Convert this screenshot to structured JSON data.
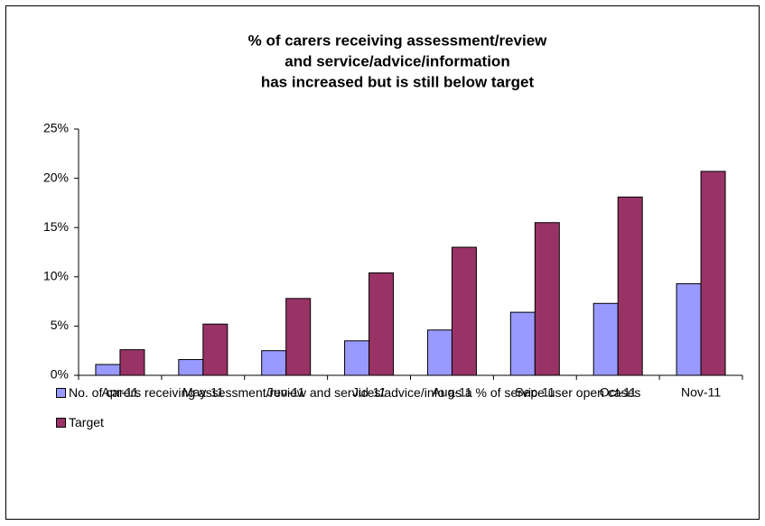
{
  "chart_data": {
    "type": "bar",
    "title": [
      "% of carers receiving assessment/review",
      "and service/advice/information",
      "has increased but is still below target"
    ],
    "categories": [
      "Apr-11",
      "May-11",
      "Jun-11",
      "Jul-11",
      "Aug-11",
      "Sep-11",
      "Oct-11",
      "Nov-11"
    ],
    "series": [
      {
        "name": "No. of carers receiving assessment/review and services/advice/info as a % of service user open cases",
        "color": "#9999ff",
        "values": [
          1.1,
          1.6,
          2.5,
          3.5,
          4.6,
          6.4,
          7.3,
          9.3
        ]
      },
      {
        "name": "Target",
        "color": "#993366",
        "values": [
          2.6,
          5.2,
          7.8,
          10.4,
          13.0,
          15.5,
          18.1,
          20.7
        ]
      }
    ],
    "ylim": [
      0,
      25
    ],
    "yticks": [
      {
        "value": 0,
        "label": "0%"
      },
      {
        "value": 5,
        "label": "5%"
      },
      {
        "value": 10,
        "label": "10%"
      },
      {
        "value": 15,
        "label": "15%"
      },
      {
        "value": 20,
        "label": "20%"
      },
      {
        "value": 25,
        "label": "25%"
      }
    ],
    "grid": false,
    "legend": "bottom"
  }
}
